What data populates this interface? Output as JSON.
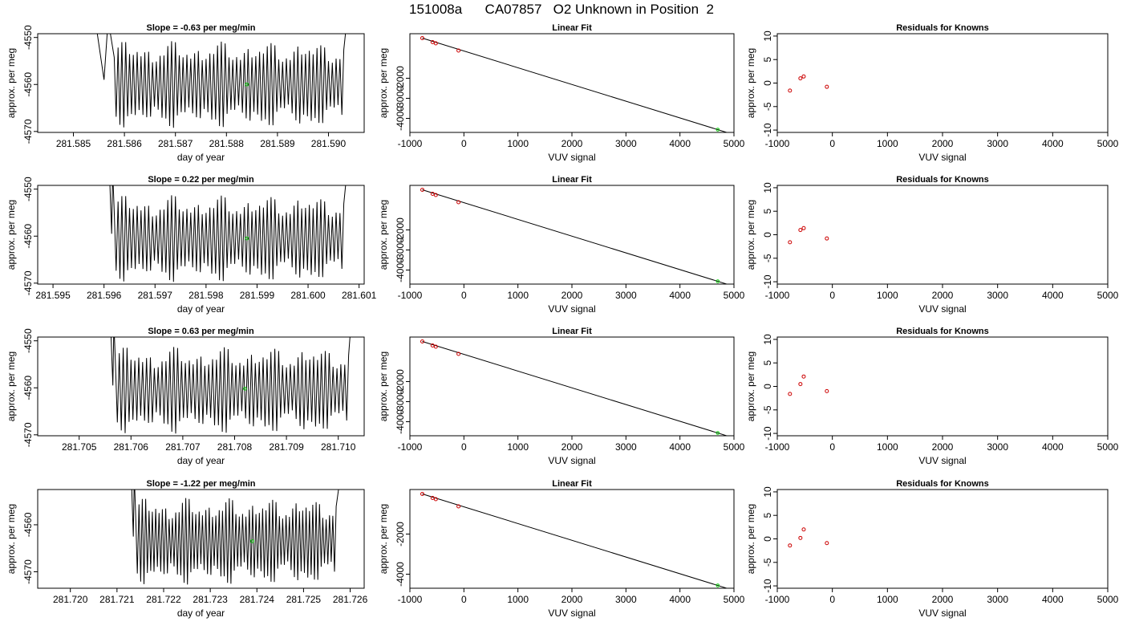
{
  "page": {
    "title": "151008a      CA07857   O2 Unknown in Position  2"
  },
  "colors": {
    "trace": "#000000",
    "unknown_marker": "#00cc00",
    "known_marker": "#cc0000",
    "fit_line": "#000000"
  },
  "chart_data": [
    {
      "type": "line",
      "row": 0,
      "col": 0,
      "title": "Slope =  -0.63  per meg/min",
      "xlabel": "day of year",
      "ylabel": "approx. per meg",
      "xlim": [
        281.5843,
        281.5907
      ],
      "ylim": [
        -4570.2,
        -4549.2
      ],
      "xticks": [
        281.585,
        281.586,
        281.587,
        281.588,
        281.589,
        281.59
      ],
      "xtick_labels": [
        "281.585",
        "281.586",
        "281.587",
        "281.588",
        "281.589",
        "281.590"
      ],
      "yticks": [
        -4570,
        -4560,
        -4550
      ],
      "ytick_labels": [
        "-4570",
        "-4560",
        "-4550"
      ],
      "trace": {
        "start": 281.5858,
        "end": 281.5903,
        "cycles": 60,
        "center": -4560,
        "amplitude": 9,
        "lead_in_start": 281.5854
      },
      "unknown_point": {
        "x": 281.5884,
        "y": -4560
      }
    },
    {
      "type": "scatter",
      "row": 0,
      "col": 1,
      "title": "Linear Fit",
      "xlabel": "VUV signal",
      "ylabel": "approx. per meg",
      "xlim": [
        -1000,
        5000
      ],
      "ylim": [
        -4700,
        220
      ],
      "xticks": [
        -1000,
        0,
        1000,
        2000,
        3000,
        4000,
        5000
      ],
      "xtick_labels": [
        "-1000",
        "0",
        "1000",
        "2000",
        "3000",
        "4000",
        "5000"
      ],
      "yticks": [
        -4000,
        -3000,
        -2000
      ],
      "ytick_labels": [
        "-4000",
        "-3000",
        "-2000"
      ],
      "known_points": [
        {
          "x": -770,
          "y": 0
        },
        {
          "x": -580,
          "y": -200
        },
        {
          "x": -520,
          "y": -260
        },
        {
          "x": -100,
          "y": -620
        }
      ],
      "unknown_point": {
        "x": 4700,
        "y": -4560
      },
      "fit_line": {
        "x": [
          -770,
          4950
        ],
        "y": [
          0,
          -4770
        ]
      }
    },
    {
      "type": "scatter",
      "row": 0,
      "col": 2,
      "title": "Residuals for Knowns",
      "xlabel": "VUV signal",
      "ylabel": "approx. per meg",
      "xlim": [
        -1000,
        5000
      ],
      "ylim": [
        -10.5,
        10.5
      ],
      "xticks": [
        -1000,
        0,
        1000,
        2000,
        3000,
        4000,
        5000
      ],
      "xtick_labels": [
        "-1000",
        "0",
        "1000",
        "2000",
        "3000",
        "4000",
        "5000"
      ],
      "yticks": [
        -10,
        -5,
        0,
        5,
        10
      ],
      "ytick_labels": [
        "-10",
        "-5",
        "0",
        "5",
        "10"
      ],
      "known_points": [
        {
          "x": -770,
          "y": -1.6
        },
        {
          "x": -580,
          "y": 1.0
        },
        {
          "x": -520,
          "y": 1.4
        },
        {
          "x": -100,
          "y": -0.8
        }
      ]
    },
    {
      "type": "line",
      "row": 1,
      "col": 0,
      "title": "Slope =  0.22  per meg/min",
      "xlabel": "day of year",
      "ylabel": "approx. per meg",
      "xlim": [
        281.5947,
        281.6011
      ],
      "ylim": [
        -4570.2,
        -4549.2
      ],
      "xticks": [
        281.595,
        281.596,
        281.597,
        281.598,
        281.599,
        281.6,
        281.601
      ],
      "xtick_labels": [
        "281.595",
        "281.596",
        "281.597",
        "281.598",
        "281.599",
        "281.600",
        "281.601"
      ],
      "yticks": [
        -4570,
        -4560,
        -4550
      ],
      "ytick_labels": [
        "-4570",
        "-4560",
        "-4550"
      ],
      "trace": {
        "start": 281.5962,
        "end": 281.6007,
        "cycles": 60,
        "center": -4560.5,
        "amplitude": 9,
        "lead_in_start": 281.5961
      },
      "unknown_point": {
        "x": 281.5988,
        "y": -4560.5
      }
    },
    {
      "type": "scatter",
      "row": 1,
      "col": 1,
      "title": "Linear Fit",
      "xlabel": "VUV signal",
      "ylabel": "approx. per meg",
      "xlim": [
        -1000,
        5000
      ],
      "ylim": [
        -4700,
        220
      ],
      "xticks": [
        -1000,
        0,
        1000,
        2000,
        3000,
        4000,
        5000
      ],
      "xtick_labels": [
        "-1000",
        "0",
        "1000",
        "2000",
        "3000",
        "4000",
        "5000"
      ],
      "yticks": [
        -4000,
        -3000,
        -2000
      ],
      "ytick_labels": [
        "-4000",
        "-3000",
        "-2000"
      ],
      "known_points": [
        {
          "x": -770,
          "y": 0
        },
        {
          "x": -580,
          "y": -200
        },
        {
          "x": -520,
          "y": -260
        },
        {
          "x": -100,
          "y": -620
        }
      ],
      "unknown_point": {
        "x": 4700,
        "y": -4560
      },
      "fit_line": {
        "x": [
          -770,
          4950
        ],
        "y": [
          0,
          -4770
        ]
      }
    },
    {
      "type": "scatter",
      "row": 1,
      "col": 2,
      "title": "Residuals for Knowns",
      "xlabel": "VUV signal",
      "ylabel": "approx. per meg",
      "xlim": [
        -1000,
        5000
      ],
      "ylim": [
        -10.5,
        10.5
      ],
      "xticks": [
        -1000,
        0,
        1000,
        2000,
        3000,
        4000,
        5000
      ],
      "xtick_labels": [
        "-1000",
        "0",
        "1000",
        "2000",
        "3000",
        "4000",
        "5000"
      ],
      "yticks": [
        -10,
        -5,
        0,
        5,
        10
      ],
      "ytick_labels": [
        "-10",
        "-5",
        "0",
        "5",
        "10"
      ],
      "known_points": [
        {
          "x": -770,
          "y": -1.6
        },
        {
          "x": -580,
          "y": 1.0
        },
        {
          "x": -520,
          "y": 1.4
        },
        {
          "x": -100,
          "y": -0.8
        }
      ]
    },
    {
      "type": "line",
      "row": 2,
      "col": 0,
      "title": "Slope =  0.63  per meg/min",
      "xlabel": "day of year",
      "ylabel": "approx. per meg",
      "xlim": [
        281.7042,
        281.7105
      ],
      "ylim": [
        -4570.2,
        -4549.2
      ],
      "xticks": [
        281.705,
        281.706,
        281.707,
        281.708,
        281.709,
        281.71
      ],
      "xtick_labels": [
        "281.705",
        "281.706",
        "281.707",
        "281.708",
        "281.709",
        "281.710"
      ],
      "yticks": [
        -4570,
        -4560,
        -4550
      ],
      "ytick_labels": [
        "-4570",
        "-4560",
        "-4550"
      ],
      "trace": {
        "start": 281.7057,
        "end": 281.7102,
        "cycles": 60,
        "center": -4560.5,
        "amplitude": 9,
        "lead_in_start": 281.7056
      },
      "unknown_point": {
        "x": 281.7082,
        "y": -4560.2
      }
    },
    {
      "type": "scatter",
      "row": 2,
      "col": 1,
      "title": "Linear Fit",
      "xlabel": "VUV signal",
      "ylabel": "approx. per meg",
      "xlim": [
        -1000,
        5000
      ],
      "ylim": [
        -4700,
        220
      ],
      "xticks": [
        -1000,
        0,
        1000,
        2000,
        3000,
        4000,
        5000
      ],
      "xtick_labels": [
        "-1000",
        "0",
        "1000",
        "2000",
        "3000",
        "4000",
        "5000"
      ],
      "yticks": [
        -4000,
        -3000,
        -2000
      ],
      "ytick_labels": [
        "-4000",
        "-3000",
        "-2000"
      ],
      "known_points": [
        {
          "x": -770,
          "y": 0
        },
        {
          "x": -580,
          "y": -200
        },
        {
          "x": -520,
          "y": -260
        },
        {
          "x": -100,
          "y": -620
        }
      ],
      "unknown_point": {
        "x": 4700,
        "y": -4560
      },
      "fit_line": {
        "x": [
          -770,
          4950
        ],
        "y": [
          0,
          -4770
        ]
      }
    },
    {
      "type": "scatter",
      "row": 2,
      "col": 2,
      "title": "Residuals for Knowns",
      "xlabel": "VUV signal",
      "ylabel": "approx. per meg",
      "xlim": [
        -1000,
        5000
      ],
      "ylim": [
        -10.5,
        10.5
      ],
      "xticks": [
        -1000,
        0,
        1000,
        2000,
        3000,
        4000,
        5000
      ],
      "xtick_labels": [
        "-1000",
        "0",
        "1000",
        "2000",
        "3000",
        "4000",
        "5000"
      ],
      "yticks": [
        -10,
        -5,
        0,
        5,
        10
      ],
      "ytick_labels": [
        "-10",
        "-5",
        "0",
        "5",
        "10"
      ],
      "known_points": [
        {
          "x": -770,
          "y": -1.6
        },
        {
          "x": -580,
          "y": 0.5
        },
        {
          "x": -520,
          "y": 2.1
        },
        {
          "x": -100,
          "y": -1.0
        }
      ]
    },
    {
      "type": "line",
      "row": 3,
      "col": 0,
      "title": "Slope =  -1.22  per meg/min",
      "xlabel": "day of year",
      "ylabel": "approx. per meg",
      "xlim": [
        281.7193,
        281.7263
      ],
      "ylim": [
        -4573.5,
        -4552.5
      ],
      "xticks": [
        281.72,
        281.721,
        281.722,
        281.723,
        281.724,
        281.725,
        281.726
      ],
      "xtick_labels": [
        "281.720",
        "281.721",
        "281.722",
        "281.723",
        "281.724",
        "281.725",
        "281.726"
      ],
      "yticks": [
        -4570,
        -4560
      ],
      "ytick_labels": [
        "-4570",
        "-4560"
      ],
      "trace": {
        "start": 281.7214,
        "end": 281.7257,
        "cycles": 60,
        "center": -4563.5,
        "amplitude": 9,
        "lead_in_start": 281.7213
      },
      "unknown_point": {
        "x": 281.7239,
        "y": -4563.5
      }
    },
    {
      "type": "scatter",
      "row": 3,
      "col": 1,
      "title": "Linear Fit",
      "xlabel": "VUV signal",
      "ylabel": "approx. per meg",
      "xlim": [
        -1000,
        5000
      ],
      "ylim": [
        -4700,
        220
      ],
      "xticks": [
        -1000,
        0,
        1000,
        2000,
        3000,
        4000,
        5000
      ],
      "xtick_labels": [
        "-1000",
        "0",
        "1000",
        "2000",
        "3000",
        "4000",
        "5000"
      ],
      "yticks": [
        -4000,
        -2000
      ],
      "ytick_labels": [
        "-4000",
        "-2000"
      ],
      "known_points": [
        {
          "x": -770,
          "y": 0
        },
        {
          "x": -580,
          "y": -200
        },
        {
          "x": -520,
          "y": -260
        },
        {
          "x": -100,
          "y": -620
        }
      ],
      "unknown_point": {
        "x": 4700,
        "y": -4560
      },
      "fit_line": {
        "x": [
          -770,
          4950
        ],
        "y": [
          0,
          -4770
        ]
      }
    },
    {
      "type": "scatter",
      "row": 3,
      "col": 2,
      "title": "Residuals for Knowns",
      "xlabel": "VUV signal",
      "ylabel": "approx. per meg",
      "xlim": [
        -1000,
        5000
      ],
      "ylim": [
        -10.5,
        10.5
      ],
      "xticks": [
        -1000,
        0,
        1000,
        2000,
        3000,
        4000,
        5000
      ],
      "xtick_labels": [
        "-1000",
        "0",
        "1000",
        "2000",
        "3000",
        "4000",
        "5000"
      ],
      "yticks": [
        -10,
        -5,
        0,
        5,
        10
      ],
      "ytick_labels": [
        "-10",
        "-5",
        "0",
        "5",
        "10"
      ],
      "known_points": [
        {
          "x": -770,
          "y": -1.4
        },
        {
          "x": -580,
          "y": 0.2
        },
        {
          "x": -520,
          "y": 2.0
        },
        {
          "x": -100,
          "y": -0.9
        }
      ]
    }
  ]
}
